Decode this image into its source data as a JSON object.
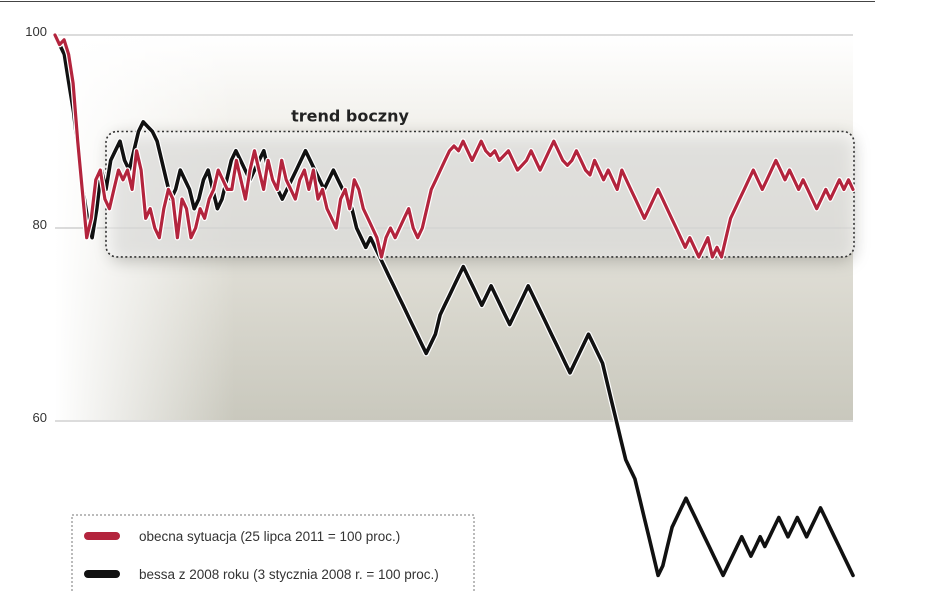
{
  "chart_data": {
    "type": "line",
    "title": "",
    "xlabel": "",
    "ylabel": "",
    "ylim": [
      42,
      100
    ],
    "y_ticks": [
      "100",
      "80",
      "60"
    ],
    "grid": true,
    "legend_placement": "bottom-left",
    "annotation": {
      "text": "trend boczny",
      "y_range": [
        77,
        90
      ]
    },
    "colors": {
      "current": "#b3243d",
      "bear_2008": "#111111",
      "grid": "#b8b8b8",
      "box": "#333333"
    },
    "series": [
      {
        "name": "obecna sytuacja (25 lipca 2011 = 100 proc.)",
        "values": [
          100,
          99,
          99.5,
          98,
          95,
          89,
          84,
          79,
          81,
          85,
          86,
          83,
          82,
          84,
          86,
          85,
          86,
          84,
          88,
          86,
          81,
          82,
          80,
          79,
          82,
          84,
          83,
          79,
          83,
          82,
          79,
          80,
          82,
          81,
          83,
          84,
          86,
          85,
          84,
          84,
          87,
          85,
          83,
          86,
          88,
          86,
          84,
          87,
          85,
          84,
          87,
          85,
          84,
          83,
          85,
          86,
          84,
          86,
          83,
          84,
          82,
          81,
          80,
          83,
          84,
          82,
          85,
          84,
          82,
          81,
          80,
          79,
          77,
          79,
          80,
          79,
          80,
          81,
          82,
          80,
          79,
          80,
          82,
          84,
          85,
          86,
          87,
          88,
          88.5,
          88,
          89,
          88,
          87,
          88,
          89,
          88,
          87.5,
          88,
          87,
          87.5,
          88,
          87,
          86,
          86.5,
          87,
          88,
          87,
          86,
          87,
          88,
          89,
          88,
          87,
          86.5,
          87,
          88,
          87,
          86,
          85.5,
          87,
          86,
          85,
          86,
          85,
          84,
          86,
          85,
          84,
          83,
          82,
          81,
          82,
          83,
          84,
          83,
          82,
          81,
          80,
          79,
          78,
          79,
          78,
          77,
          78,
          79,
          77,
          78,
          77,
          79,
          81,
          82,
          83,
          84,
          85,
          86,
          85,
          84,
          85,
          86,
          87,
          86,
          85,
          86,
          85,
          84,
          85,
          84,
          83,
          82,
          83,
          84,
          83,
          84,
          85,
          84,
          85,
          84
        ]
      },
      {
        "name": "bessa z 2008 roku (3 stycznia 2008 r. = 100 proc.)",
        "values": [
          100,
          99,
          98,
          95,
          92,
          88,
          84,
          81,
          79,
          82,
          86,
          84,
          87,
          88,
          89,
          87,
          86,
          88,
          90,
          91,
          90.5,
          90,
          89,
          87,
          85,
          83,
          84,
          86,
          85,
          84,
          82,
          83,
          85,
          86,
          84,
          82,
          83,
          85,
          87,
          88,
          87,
          86,
          85,
          86,
          87,
          88,
          86,
          85,
          84,
          83,
          84,
          85,
          86,
          87,
          88,
          87,
          86,
          85,
          84,
          85,
          86,
          85,
          84,
          83,
          82,
          80,
          79,
          78,
          79,
          78,
          77,
          76,
          75,
          74,
          73,
          72,
          71,
          70,
          69,
          68,
          67,
          68,
          69,
          71,
          72,
          73,
          74,
          75,
          76,
          75,
          74,
          73,
          72,
          73,
          74,
          73,
          72,
          71,
          70,
          71,
          72,
          73,
          74,
          73,
          72,
          71,
          70,
          69,
          68,
          67,
          66,
          65,
          66,
          67,
          68,
          69,
          68,
          67,
          66,
          64,
          62,
          60,
          58,
          56,
          55,
          54,
          52,
          50,
          48,
          46,
          44,
          45,
          47,
          49,
          50,
          51,
          52,
          51,
          50,
          49,
          48,
          47,
          46,
          45,
          44,
          45,
          46,
          47,
          48,
          47,
          46,
          47,
          48,
          47,
          48,
          49,
          50,
          49,
          48,
          49,
          50,
          49,
          48,
          49,
          50,
          51,
          50,
          49,
          48,
          47,
          46,
          45,
          44
        ]
      }
    ]
  },
  "legend": {
    "items": [
      {
        "label": "obecna sytuacja (25 lipca 2011 = 100 proc.)",
        "color": "#b3243d"
      },
      {
        "label": "bessa z 2008 roku (3 stycznia 2008 r. = 100 proc.)",
        "color": "#111111"
      }
    ]
  }
}
